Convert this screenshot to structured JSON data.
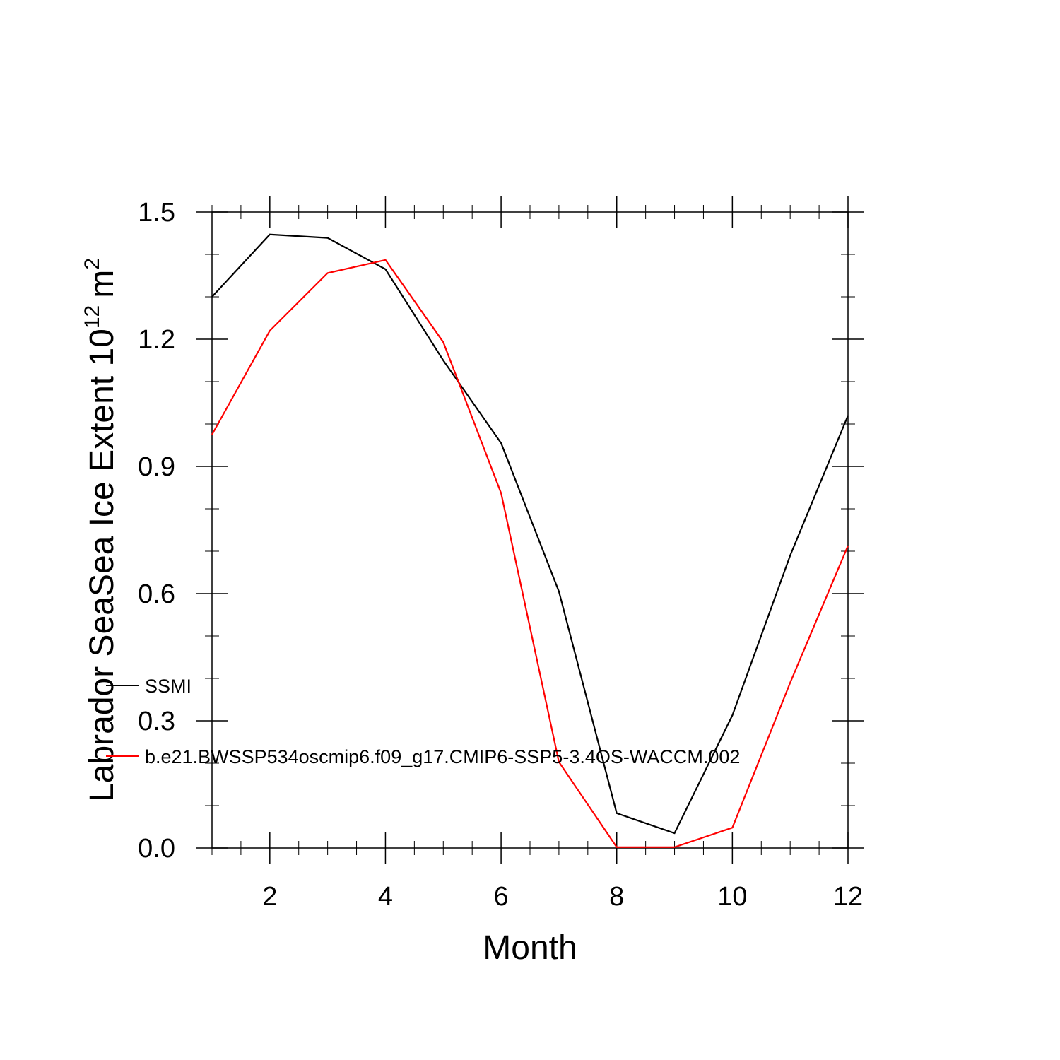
{
  "chart_data": {
    "type": "line",
    "xlabel": "Month",
    "ylabel": {
      "main": "Labrador SeaSea Ice Extent 10",
      "exponent": "12",
      "unit": "m",
      "unit_exponent": "2"
    },
    "xlim": [
      1,
      12
    ],
    "ylim": [
      0.0,
      1.5
    ],
    "x_ticks": [
      2,
      4,
      6,
      8,
      10,
      12
    ],
    "x_tick_labels": [
      "2",
      "4",
      "6",
      "8",
      "10",
      "12"
    ],
    "y_ticks": [
      0.0,
      0.3,
      0.6,
      0.9,
      1.2,
      1.5
    ],
    "y_tick_labels": [
      "0.0",
      "0.3",
      "0.6",
      "0.9",
      "1.2",
      "1.5"
    ],
    "grid": false,
    "legend_position": "left-inside",
    "x": [
      1,
      2,
      3,
      4,
      5,
      6,
      7,
      8,
      9,
      10,
      11,
      12
    ],
    "series": [
      {
        "name": "SSMI",
        "color": "#000000",
        "values": [
          1.3,
          1.447,
          1.439,
          1.365,
          1.15,
          0.955,
          0.605,
          0.082,
          0.035,
          0.313,
          0.69,
          1.02
        ]
      },
      {
        "name": "b.e21.BWSSP534oscmip6.f09_g17.CMIP6-SSP5-3.4OS-WACCM.002",
        "color": "#ff0000",
        "values": [
          0.975,
          1.22,
          1.356,
          1.387,
          1.193,
          0.837,
          0.203,
          0.002,
          0.002,
          0.048,
          0.39,
          0.713
        ]
      }
    ]
  }
}
